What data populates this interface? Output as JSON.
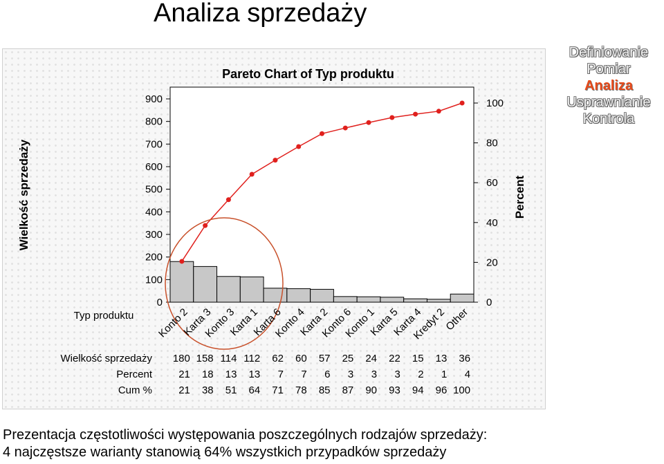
{
  "page_title": "Analiza sprzedaży",
  "steps": [
    {
      "label": "Definiowanie",
      "active": false
    },
    {
      "label": "Pomiar",
      "active": false
    },
    {
      "label": "Analiza",
      "active": true
    },
    {
      "label": "Usprawnianie",
      "active": false
    },
    {
      "label": "Kontrola",
      "active": false
    }
  ],
  "bottom_text": {
    "line1": "Prezentacja częstotliwości występowania poszczególnych rodzajów sprzedaży:",
    "line2": "4 najczęstsze warianty stanowią 64% wszystkich przypadków sprzedaży"
  },
  "chart_data": {
    "type": "bar",
    "title": "Pareto Chart of Typ produktu",
    "ylabel": "Wielkość sprzedaży",
    "y2label": "Percent",
    "xlabel": "Typ produktu",
    "ylim": [
      0,
      900
    ],
    "y_ticks": [
      0,
      100,
      200,
      300,
      400,
      500,
      600,
      700,
      800,
      900
    ],
    "y2lim": [
      0,
      100
    ],
    "y2_ticks": [
      0,
      20,
      40,
      60,
      80,
      100
    ],
    "categories": [
      "Konto 2",
      "Karta 3",
      "Konto 3",
      "Karta 1",
      "Karta 6",
      "Konto 4",
      "Karta 2",
      "Konto 6",
      "Konto 1",
      "Karta 5",
      "Karta 4",
      "Kredyt 2",
      "Other"
    ],
    "values": [
      180,
      158,
      114,
      112,
      62,
      60,
      57,
      25,
      24,
      22,
      15,
      13,
      36
    ],
    "cumulative_line": [
      180,
      338,
      452,
      564,
      626,
      686,
      743,
      768,
      792,
      814,
      829,
      842,
      878
    ],
    "bar_color": "#c8c8c8",
    "line_color": "#e0201d",
    "highlight_color": "#c8502a",
    "table": {
      "rows": [
        {
          "label": "Wielkość sprzedaży",
          "values": [
            "180",
            "158",
            "114",
            "112",
            "62",
            "60",
            "57",
            "25",
            "24",
            "22",
            "15",
            "13",
            "36"
          ]
        },
        {
          "label": "Percent",
          "values": [
            "21",
            "18",
            "13",
            "13",
            "7",
            "7",
            "6",
            "3",
            "3",
            "3",
            "2",
            "1",
            "4"
          ]
        },
        {
          "label": "Cum %",
          "values": [
            "21",
            "38",
            "51",
            "64",
            "71",
            "78",
            "85",
            "87",
            "90",
            "93",
            "94",
            "96",
            "100"
          ]
        }
      ]
    }
  }
}
